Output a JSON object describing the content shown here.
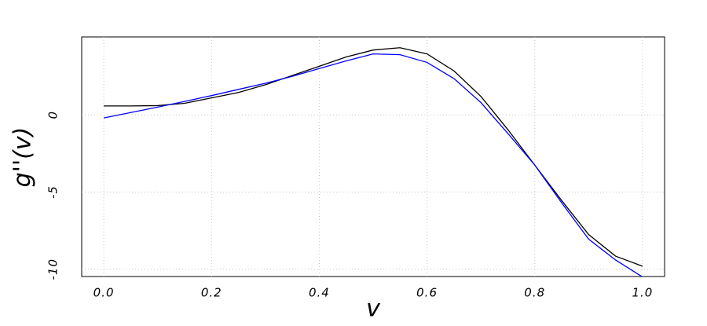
{
  "chart_data": {
    "type": "line",
    "xlabel": "v",
    "ylabel": "g''(v)",
    "x": [
      0,
      0.05,
      0.1,
      0.15,
      0.2,
      0.25,
      0.3,
      0.35,
      0.4,
      0.45,
      0.5,
      0.55,
      0.6,
      0.65,
      0.7,
      0.75,
      0.8,
      0.85,
      0.9,
      0.95,
      1.0
    ],
    "series": [
      {
        "color": "#000000",
        "values": [
          0.58,
          0.58,
          0.6,
          0.75,
          1.1,
          1.45,
          1.95,
          2.55,
          3.15,
          3.75,
          4.2,
          4.35,
          3.95,
          2.85,
          1.2,
          -0.95,
          -3.25,
          -5.55,
          -7.75,
          -9.15,
          -9.8
        ]
      },
      {
        "color": "#0000ff",
        "values": [
          -0.2,
          0.15,
          0.5,
          0.87,
          1.25,
          1.65,
          2.05,
          2.5,
          3.0,
          3.5,
          3.95,
          3.9,
          3.4,
          2.35,
          0.8,
          -1.2,
          -3.25,
          -5.7,
          -8.05,
          -9.4,
          -10.5
        ]
      }
    ],
    "xlim": [
      -0.041,
      1.041
    ],
    "ylim": [
      -10.47,
      5.05
    ],
    "xticks": [
      {
        "value": 0,
        "label": "0.0"
      },
      {
        "value": 0.2,
        "label": "0.2"
      },
      {
        "value": 0.4,
        "label": "0.4"
      },
      {
        "value": 0.6,
        "label": "0.6"
      },
      {
        "value": 0.8,
        "label": "0.8"
      },
      {
        "value": 1,
        "label": "1.0"
      }
    ],
    "yticks": [
      0,
      -5,
      -10
    ],
    "grid": true
  }
}
